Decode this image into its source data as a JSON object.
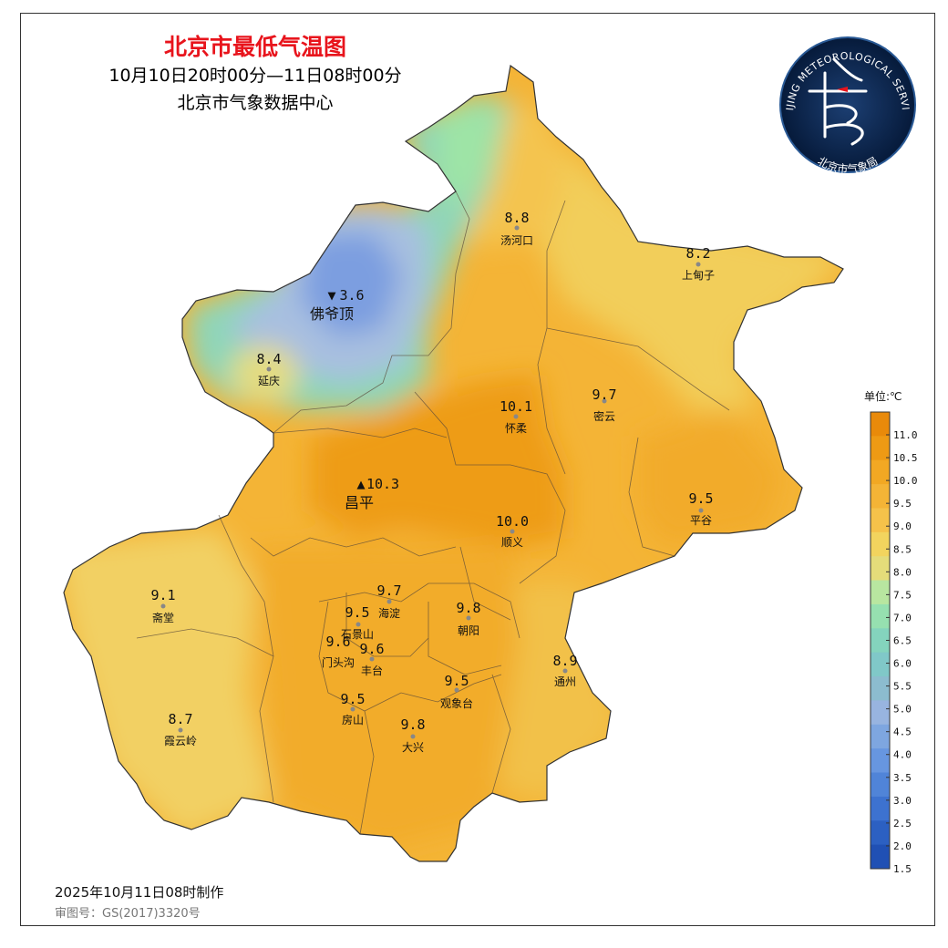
{
  "title": "北京市最低气温图",
  "period": "10月10日20时00分—11日08时00分",
  "agency": "北京市气象数据中心",
  "logo": {
    "text_top": "BEIJING METEOROLOGICAL SERVICE",
    "text_bottom": "北京市气象局"
  },
  "made_at": "2025年10月11日08时制作",
  "approval_no": "审图号：GS(2017)3320号",
  "legend": {
    "unit": "单位:℃",
    "ticks": [
      "11.0",
      "10.5",
      "10.0",
      "9.5",
      "9.0",
      "8.5",
      "8.0",
      "7.5",
      "7.0",
      "6.5",
      "6.0",
      "5.5",
      "5.0",
      "4.5",
      "4.0",
      "3.5",
      "3.0",
      "2.5",
      "2.0",
      "1.5"
    ],
    "colors": [
      "#e98a0a",
      "#ee9a14",
      "#f2a823",
      "#f4b436",
      "#f5c24a",
      "#f2d45e",
      "#e4dc7a",
      "#b8e6a0",
      "#96e0b0",
      "#84d4bd",
      "#80c8c8",
      "#8cbccf",
      "#98b4e0",
      "#7ea6e0",
      "#6796e0",
      "#5084d8",
      "#3d72d0",
      "#2c60c2",
      "#2050b4"
    ]
  },
  "stations": [
    {
      "name": "汤河口",
      "value": "8.8"
    },
    {
      "name": "上甸子",
      "value": "8.2"
    },
    {
      "name": "佛爷顶",
      "value": "3.6",
      "marker": "▼"
    },
    {
      "name": "延庆",
      "value": "8.4"
    },
    {
      "name": "怀柔",
      "value": "10.1"
    },
    {
      "name": "密云",
      "value": "9.7"
    },
    {
      "name": "昌平",
      "value": "10.3",
      "marker": "▲"
    },
    {
      "name": "平谷",
      "value": "9.5"
    },
    {
      "name": "顺义",
      "value": "10.0"
    },
    {
      "name": "斋堂",
      "value": "9.1"
    },
    {
      "name": "海淀",
      "value": "9.7"
    },
    {
      "name": "石景山",
      "value": "9.5"
    },
    {
      "name": "朝阳",
      "value": "9.8"
    },
    {
      "name": "门头沟",
      "value": "9.6"
    },
    {
      "name": "丰台",
      "value": "9.6"
    },
    {
      "name": "通州",
      "value": "8.9"
    },
    {
      "name": "观象台",
      "value": "9.5"
    },
    {
      "name": "房山",
      "value": "9.5"
    },
    {
      "name": "大兴",
      "value": "9.8"
    },
    {
      "name": "霞云岭",
      "value": "8.7"
    }
  ]
}
